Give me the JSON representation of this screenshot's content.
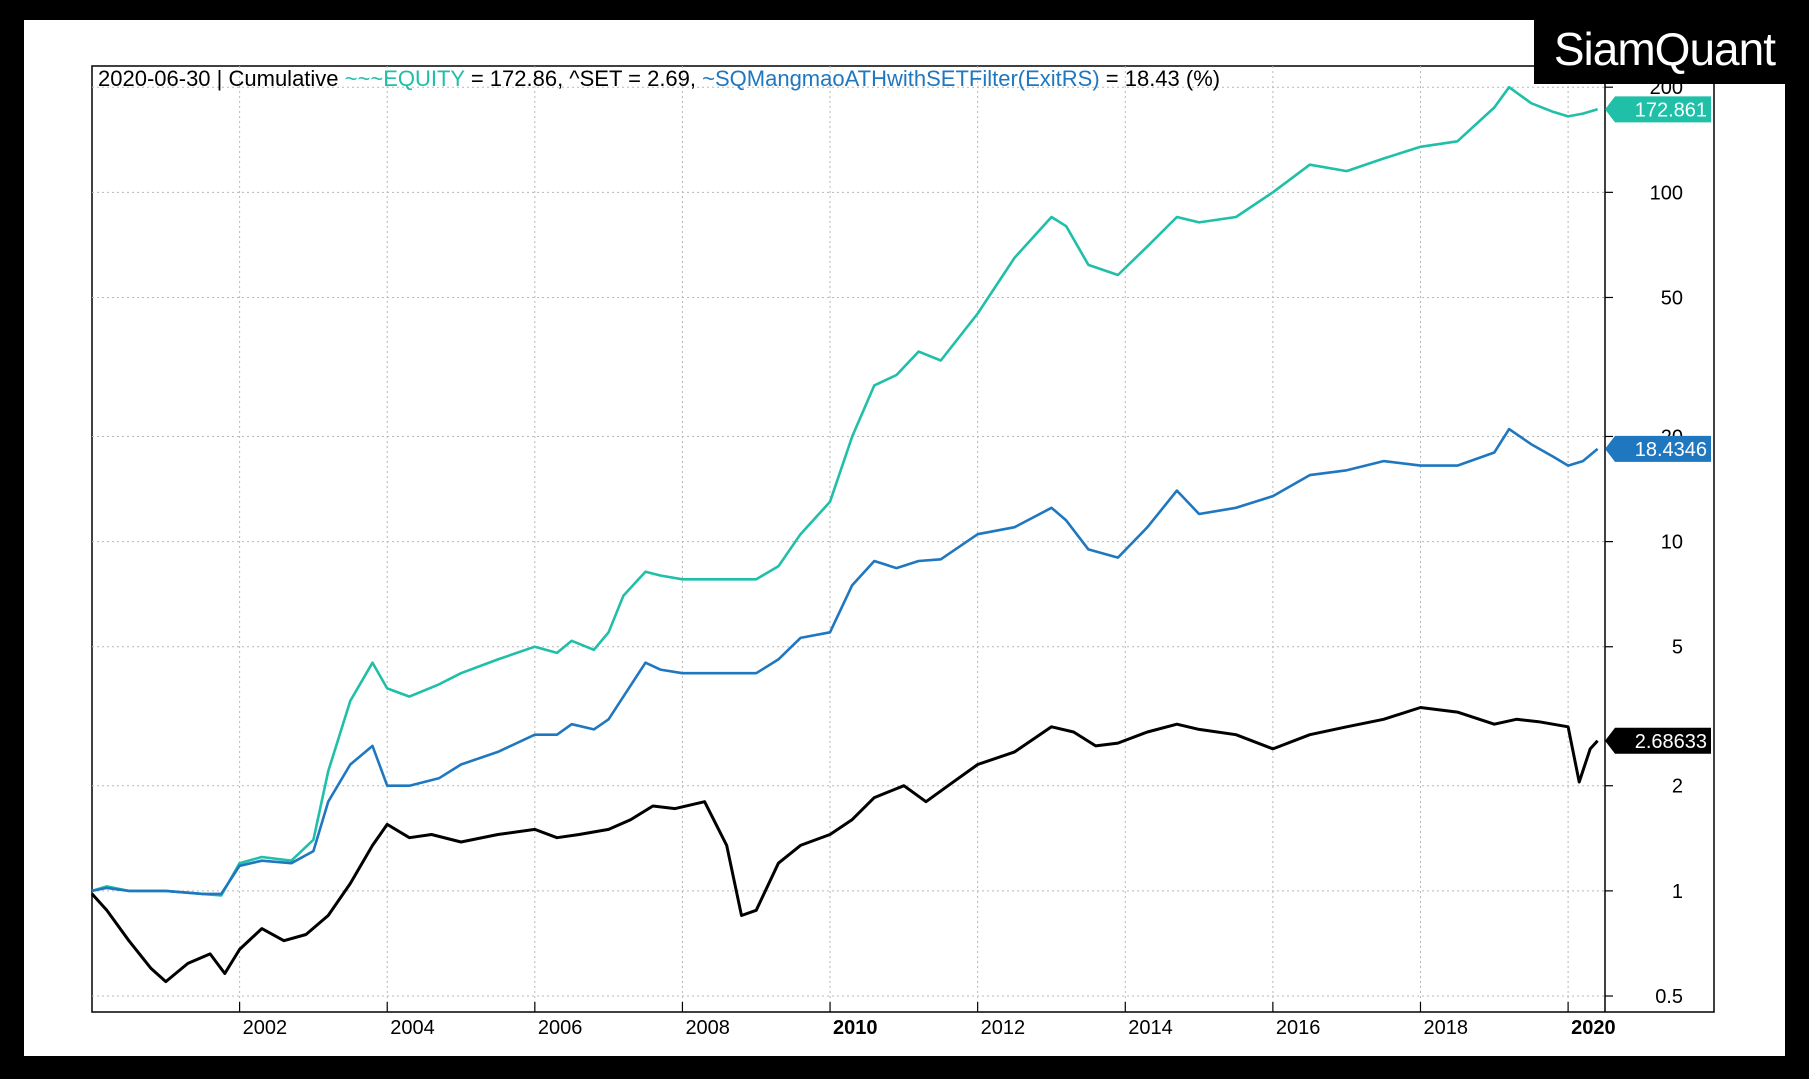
{
  "brand": "SiamQuant",
  "header": {
    "date": "2020-06-30",
    "separator": "|",
    "mode": "Cumulative",
    "legend_parts": [
      {
        "text": "~~~EQUITY",
        "color": "#1fbfa8"
      },
      {
        "text": " = 172.86, ",
        "color": "#000000"
      },
      {
        "text": "^SET",
        "color": "#000000"
      },
      {
        "text": " = 2.69, ",
        "color": "#000000"
      },
      {
        "text": "~SQMangmaoATHwithSETFilter(ExitRS)",
        "color": "#1f77c0"
      },
      {
        "text": " = 18.43 (%)",
        "color": "#000000"
      }
    ]
  },
  "chart_data": {
    "type": "line",
    "y_scale": "log",
    "ylim": [
      0.45,
      230
    ],
    "xlim": [
      2000.0,
      2020.5
    ],
    "y_ticks": [
      0.5,
      1,
      2,
      5,
      10,
      20,
      50,
      100,
      200
    ],
    "y_tick_labels": [
      "0.5",
      "1",
      "2",
      "5",
      "10",
      "20",
      "50",
      "100",
      "200"
    ],
    "x_ticks": [
      2002,
      2004,
      2006,
      2008,
      2010,
      2012,
      2014,
      2016,
      2018,
      2020
    ],
    "x_tick_labels": [
      "2002",
      "2004",
      "2006",
      "2008",
      "2010",
      "2012",
      "2014",
      "2016",
      "2018",
      "2020"
    ],
    "x_bold_ticks": [
      2010,
      2020
    ],
    "grid": true,
    "series": [
      {
        "name": "~~~EQUITY",
        "color": "#1fbfa8",
        "last_value_label": "172.861",
        "x": [
          2000.0,
          2000.2,
          2000.5,
          2001.0,
          2001.5,
          2001.75,
          2002.0,
          2002.3,
          2002.7,
          2003.0,
          2003.2,
          2003.5,
          2003.8,
          2004.0,
          2004.3,
          2004.7,
          2005.0,
          2005.5,
          2006.0,
          2006.3,
          2006.5,
          2006.8,
          2007.0,
          2007.2,
          2007.5,
          2007.7,
          2008.0,
          2008.5,
          2009.0,
          2009.3,
          2009.6,
          2010.0,
          2010.3,
          2010.6,
          2010.9,
          2011.2,
          2011.5,
          2012.0,
          2012.5,
          2013.0,
          2013.2,
          2013.5,
          2013.9,
          2014.3,
          2014.7,
          2015.0,
          2015.5,
          2016.0,
          2016.5,
          2017.0,
          2017.5,
          2018.0,
          2018.5,
          2019.0,
          2019.2,
          2019.5,
          2019.8,
          2020.0,
          2020.2,
          2020.4
        ],
        "y": [
          1.0,
          1.03,
          1.0,
          1.0,
          0.98,
          0.97,
          1.2,
          1.25,
          1.22,
          1.4,
          2.2,
          3.5,
          4.5,
          3.8,
          3.6,
          3.9,
          4.2,
          4.6,
          5.0,
          4.8,
          5.2,
          4.9,
          5.5,
          7.0,
          8.2,
          8.0,
          7.8,
          7.8,
          7.8,
          8.5,
          10.5,
          13.0,
          20.0,
          28.0,
          30.0,
          35.0,
          33.0,
          45.0,
          65.0,
          85.0,
          80.0,
          62.0,
          58.0,
          70.0,
          85.0,
          82.0,
          85.0,
          100.0,
          120.0,
          115.0,
          125.0,
          135.0,
          140.0,
          175.0,
          200.0,
          180.0,
          170.0,
          165.0,
          168.0,
          172.86
        ]
      },
      {
        "name": "~SQMangmaoATHwithSETFilter(ExitRS)",
        "color": "#1f77c0",
        "last_value_label": "18.4346",
        "x": [
          2000.0,
          2000.2,
          2000.5,
          2001.0,
          2001.5,
          2001.75,
          2002.0,
          2002.3,
          2002.7,
          2003.0,
          2003.2,
          2003.5,
          2003.8,
          2004.0,
          2004.3,
          2004.7,
          2005.0,
          2005.5,
          2006.0,
          2006.3,
          2006.5,
          2006.8,
          2007.0,
          2007.2,
          2007.5,
          2007.7,
          2008.0,
          2008.5,
          2009.0,
          2009.3,
          2009.6,
          2010.0,
          2010.3,
          2010.6,
          2010.9,
          2011.2,
          2011.5,
          2012.0,
          2012.5,
          2013.0,
          2013.2,
          2013.5,
          2013.9,
          2014.3,
          2014.7,
          2015.0,
          2015.5,
          2016.0,
          2016.5,
          2017.0,
          2017.5,
          2018.0,
          2018.5,
          2019.0,
          2019.2,
          2019.5,
          2019.8,
          2020.0,
          2020.2,
          2020.4
        ],
        "y": [
          1.0,
          1.02,
          1.0,
          1.0,
          0.98,
          0.98,
          1.18,
          1.22,
          1.2,
          1.3,
          1.8,
          2.3,
          2.6,
          2.0,
          2.0,
          2.1,
          2.3,
          2.5,
          2.8,
          2.8,
          3.0,
          2.9,
          3.1,
          3.6,
          4.5,
          4.3,
          4.2,
          4.2,
          4.2,
          4.6,
          5.3,
          5.5,
          7.5,
          8.8,
          8.4,
          8.8,
          8.9,
          10.5,
          11.0,
          12.5,
          11.5,
          9.5,
          9.0,
          11.0,
          14.0,
          12.0,
          12.5,
          13.5,
          15.5,
          16.0,
          17.0,
          16.5,
          16.5,
          18.0,
          21.0,
          19.0,
          17.5,
          16.5,
          17.0,
          18.43
        ]
      },
      {
        "name": "^SET",
        "color": "#000000",
        "last_value_label": "2.68633",
        "x": [
          2000.0,
          2000.2,
          2000.5,
          2000.8,
          2001.0,
          2001.3,
          2001.6,
          2001.8,
          2002.0,
          2002.3,
          2002.6,
          2002.9,
          2003.2,
          2003.5,
          2003.8,
          2004.0,
          2004.3,
          2004.6,
          2005.0,
          2005.5,
          2006.0,
          2006.3,
          2006.6,
          2007.0,
          2007.3,
          2007.6,
          2007.9,
          2008.3,
          2008.6,
          2008.8,
          2009.0,
          2009.3,
          2009.6,
          2010.0,
          2010.3,
          2010.6,
          2011.0,
          2011.3,
          2011.6,
          2012.0,
          2012.5,
          2013.0,
          2013.3,
          2013.6,
          2013.9,
          2014.3,
          2014.7,
          2015.0,
          2015.5,
          2016.0,
          2016.5,
          2017.0,
          2017.5,
          2018.0,
          2018.5,
          2019.0,
          2019.3,
          2019.6,
          2020.0,
          2020.15,
          2020.3,
          2020.4
        ],
        "y": [
          0.98,
          0.88,
          0.72,
          0.6,
          0.55,
          0.62,
          0.66,
          0.58,
          0.68,
          0.78,
          0.72,
          0.75,
          0.85,
          1.05,
          1.35,
          1.55,
          1.42,
          1.45,
          1.38,
          1.45,
          1.5,
          1.42,
          1.45,
          1.5,
          1.6,
          1.75,
          1.72,
          1.8,
          1.35,
          0.85,
          0.88,
          1.2,
          1.35,
          1.45,
          1.6,
          1.85,
          2.0,
          1.8,
          2.0,
          2.3,
          2.5,
          2.95,
          2.85,
          2.6,
          2.65,
          2.85,
          3.0,
          2.9,
          2.8,
          2.55,
          2.8,
          2.95,
          3.1,
          3.35,
          3.25,
          3.0,
          3.1,
          3.05,
          2.95,
          2.05,
          2.55,
          2.69
        ]
      }
    ]
  }
}
